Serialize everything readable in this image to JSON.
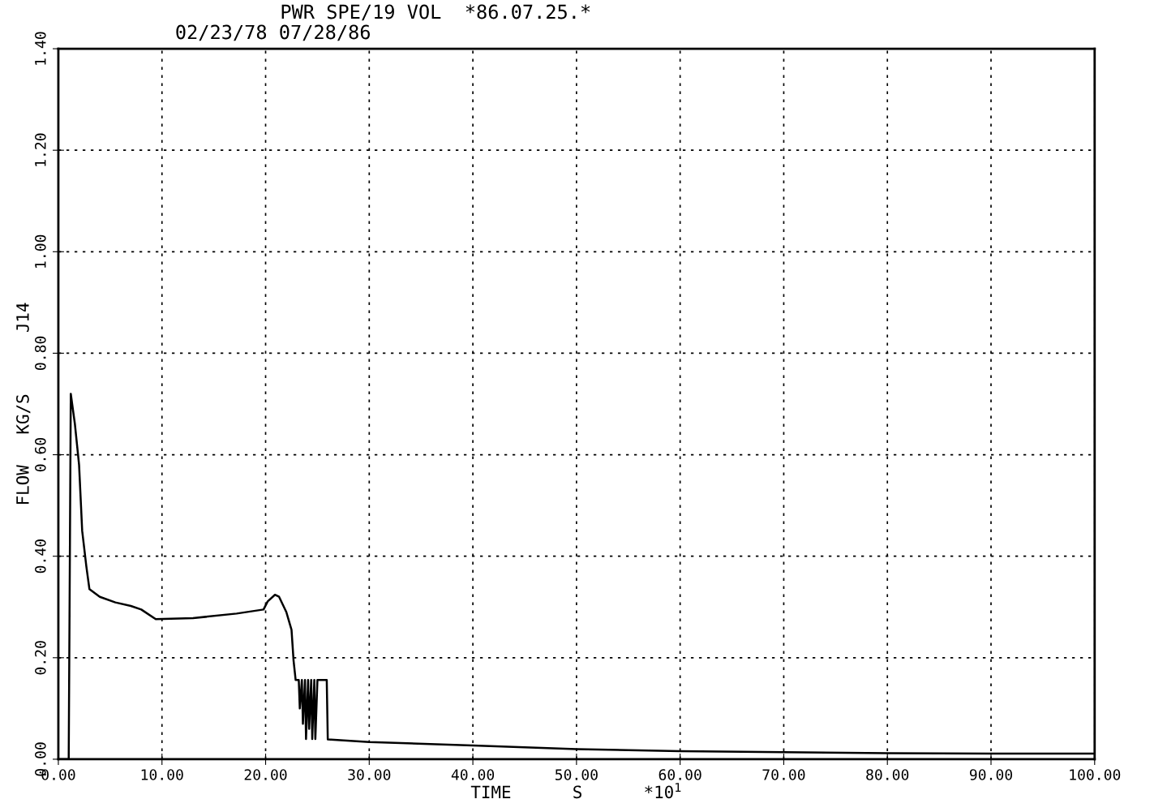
{
  "chart_data": {
    "type": "line",
    "title": "PWR SPE/19 VOL  *86.07.25.*",
    "subtitle": "02/23/78 07/28/86",
    "xlabel": "TIME      S      *10$^{1}$",
    "ylabel": "FLOW   KG/S      J14",
    "xlim": [
      0,
      100
    ],
    "ylim": [
      0,
      1.4
    ],
    "xticks": [
      {
        "value": 0,
        "label": "0.00"
      },
      {
        "value": 10,
        "label": "10.00"
      },
      {
        "value": 20,
        "label": "20.00"
      },
      {
        "value": 30,
        "label": "30.00"
      },
      {
        "value": 40,
        "label": "40.00"
      },
      {
        "value": 50,
        "label": "50.00"
      },
      {
        "value": 60,
        "label": "60.00"
      },
      {
        "value": 70,
        "label": "70.00"
      },
      {
        "value": 80,
        "label": "80.00"
      },
      {
        "value": 90,
        "label": "90.00"
      },
      {
        "value": 100,
        "label": "100.00"
      }
    ],
    "yticks": [
      {
        "value": 0,
        "label": "0.00"
      },
      {
        "value": 0.2,
        "label": "0.20"
      },
      {
        "value": 0.4,
        "label": "0.40"
      },
      {
        "value": 0.6,
        "label": "0.60"
      },
      {
        "value": 0.8,
        "label": "0.80"
      },
      {
        "value": 1.0,
        "label": "1.00"
      },
      {
        "value": 1.2,
        "label": "1.20"
      },
      {
        "value": 1.4,
        "label": "1.40"
      }
    ],
    "grid": true,
    "line_style": "solid",
    "marker": "none",
    "series": [
      {
        "color": "#000000",
        "x": [
          0.0,
          1.0,
          1.2,
          1.6,
          2.0,
          2.3,
          2.7,
          3.0,
          4.0,
          5.5,
          7.0,
          8.0,
          9.4,
          13.0,
          17.2,
          19.8,
          20.2,
          20.9,
          21.3,
          22.0,
          22.5,
          22.7,
          22.9,
          23.2,
          23.3,
          23.5,
          23.6,
          23.8,
          23.9,
          24.1,
          24.2,
          24.4,
          24.5,
          24.7,
          24.8,
          25.0,
          25.1,
          25.9,
          26.0,
          30.0,
          40.0,
          50.0,
          60.0,
          70.0,
          80.0,
          90.0,
          100.0
        ],
        "values": [
          0.0,
          0.0,
          0.72,
          0.66,
          0.58,
          0.45,
          0.38,
          0.335,
          0.32,
          0.309,
          0.302,
          0.295,
          0.276,
          0.278,
          0.287,
          0.295,
          0.311,
          0.324,
          0.32,
          0.29,
          0.255,
          0.194,
          0.156,
          0.156,
          0.1,
          0.156,
          0.07,
          0.156,
          0.04,
          0.156,
          0.06,
          0.156,
          0.04,
          0.156,
          0.04,
          0.156,
          0.156,
          0.156,
          0.039,
          0.034,
          0.027,
          0.02,
          0.016,
          0.014,
          0.012,
          0.011,
          0.011
        ]
      }
    ]
  }
}
